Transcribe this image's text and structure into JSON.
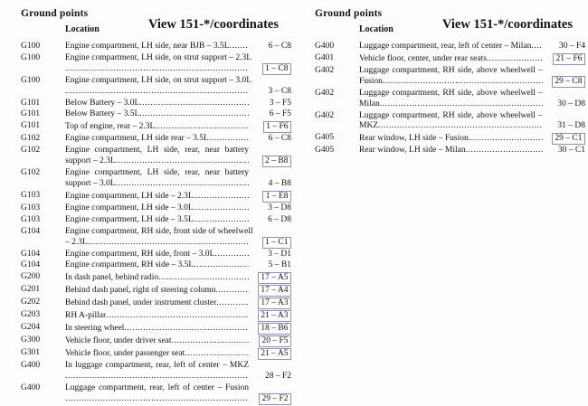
{
  "colors": {
    "box_border": "#8f8fba",
    "text": "#141414",
    "background": "#fdfdfd"
  },
  "document": {
    "columns": [
      {
        "section_title": "Ground points",
        "view_title": "View 151-*/coordinates",
        "location_header": "Location",
        "rows": [
          {
            "code": "G100",
            "lines": [
              "Engine compartment, LH side, near BJB – 3.5L"
            ],
            "coord": "6 – C8",
            "boxed": false
          },
          {
            "code": "G100",
            "lines": [
              "Engine compartment, LH side, on strut support – 2.3L",
              ""
            ],
            "coord": "1 – C8",
            "boxed": true
          },
          {
            "code": "G100",
            "lines": [
              "Engine compartment, LH side, on strut support – 3.0L",
              ""
            ],
            "coord": "3 – C8",
            "boxed": false
          },
          {
            "code": "G101",
            "lines": [
              "Below Battery – 3.0L"
            ],
            "coord": "3 – F5",
            "boxed": false
          },
          {
            "code": "G101",
            "lines": [
              "Below Battery – 3.5L"
            ],
            "coord": "6 – F5",
            "boxed": false
          },
          {
            "code": "G101",
            "lines": [
              "Top of engine, rear – 2.3L"
            ],
            "coord": "1 – F6",
            "boxed": true
          },
          {
            "code": "G102",
            "lines": [
              "Engine compartment, LH side rear – 3.5L"
            ],
            "coord": "6 – C8",
            "boxed": false
          },
          {
            "code": "G102",
            "lines": [
              "Engine compartment, LH side, rear, near battery",
              "support – 2.3L"
            ],
            "coord": "2 – B8",
            "boxed": true
          },
          {
            "code": "G102",
            "lines": [
              "Engine compartment, LH side, rear, near battery",
              "support – 3.0L"
            ],
            "coord": "4 – B8",
            "boxed": false
          },
          {
            "code": "G103",
            "lines": [
              "Engine compartment, LH side – 2.3L"
            ],
            "coord": "1 – E8",
            "boxed": true
          },
          {
            "code": "G103",
            "lines": [
              "Engine compartment, LH side – 3.0L"
            ],
            "coord": "3 – D8",
            "boxed": false
          },
          {
            "code": "G103",
            "lines": [
              "Engine compartment, LH side – 3.5L"
            ],
            "coord": "6 – D8",
            "boxed": false
          },
          {
            "code": "G104",
            "lines": [
              "Engine compartment, RH side, front side of wheelwell",
              "– 2.3L"
            ],
            "coord": "1 – C1",
            "boxed": true
          },
          {
            "code": "G104",
            "lines": [
              "Engine compartment, RH side, front – 3.0L"
            ],
            "coord": "3 – D1",
            "boxed": false
          },
          {
            "code": "G104",
            "lines": [
              "Engine compartment, RH side – 3.5L"
            ],
            "coord": "5 – B1",
            "boxed": false
          },
          {
            "code": "G200",
            "lines": [
              "In dash panel, behind radio"
            ],
            "coord": "17 – A5",
            "boxed": true
          },
          {
            "code": "G201",
            "lines": [
              "Behind dash panel, right of steering column"
            ],
            "coord": "17 – A4",
            "boxed": true
          },
          {
            "code": "G202",
            "lines": [
              "Behind dash panel, under instrument cluster"
            ],
            "coord": "17 – A3",
            "boxed": true
          },
          {
            "code": "G203",
            "lines": [
              "RH A-pillar"
            ],
            "coord": "21 – A3",
            "boxed": true
          },
          {
            "code": "G204",
            "lines": [
              "In steering wheel"
            ],
            "coord": "18 – B6",
            "boxed": true
          },
          {
            "code": "G300",
            "lines": [
              "Vehicle floor, under driver seat"
            ],
            "coord": "20 – F5",
            "boxed": true
          },
          {
            "code": "G301",
            "lines": [
              "Vehicle floor, under passenger seat"
            ],
            "coord": "21 – A5",
            "boxed": true
          },
          {
            "code": "G400",
            "lines": [
              "In luggage compartment, rear, left of center – MKZ",
              ""
            ],
            "coord": "28 – F2",
            "boxed": false
          },
          {
            "code": "G400",
            "lines": [
              "Luggage compartment, rear, left of center – Fusion",
              ""
            ],
            "coord": "29 – F2",
            "boxed": true
          }
        ]
      },
      {
        "section_title": "Ground points",
        "view_title": "View 151-*/coordinates",
        "location_header": "Location",
        "rows": [
          {
            "code": "G400",
            "lines": [
              "Luggage compartment, rear, left of center – Milan"
            ],
            "coord": "30 – F4",
            "boxed": false
          },
          {
            "code": "G401",
            "lines": [
              "Vehicle floor, center, under rear seats"
            ],
            "coord": "21 – F6",
            "boxed": true
          },
          {
            "code": "G402",
            "lines": [
              "Luggage compartment, RH side, above wheelwell –",
              "Fusion"
            ],
            "coord": "29 – C8",
            "boxed": true
          },
          {
            "code": "G402",
            "lines": [
              "Luggage compartment, RH side, above wheelwell –",
              "Milan"
            ],
            "coord": "30 – D8",
            "boxed": false
          },
          {
            "code": "G402",
            "lines": [
              "Luggage compartment, RH side, above wheelwell –",
              "MKZ"
            ],
            "coord": "31 – D8",
            "boxed": false
          },
          {
            "code": "G405",
            "lines": [
              "Rear window, LH side – Fusion"
            ],
            "coord": "29 – C1",
            "boxed": true
          },
          {
            "code": "G405",
            "lines": [
              "Rear window, LH side – Milan"
            ],
            "coord": "30 – C1",
            "boxed": false
          }
        ]
      }
    ]
  }
}
